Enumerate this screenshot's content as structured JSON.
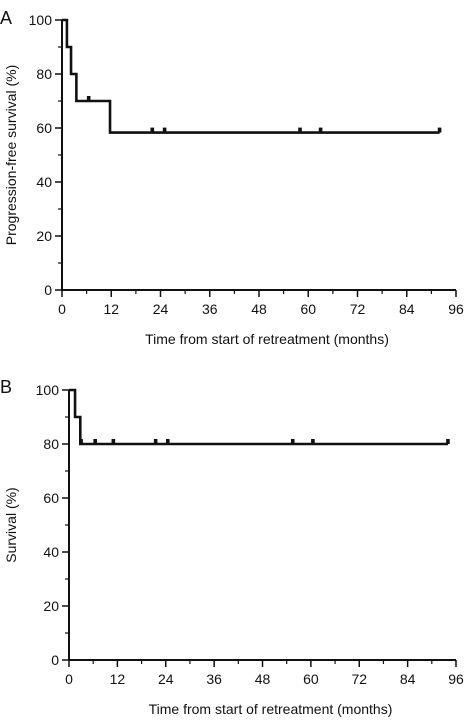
{
  "colors": {
    "line": "#111111",
    "background": "#ffffff"
  },
  "chart_data": [
    {
      "panel_label": "A",
      "type": "line",
      "step": true,
      "xlabel": "Time from start of retreatment (months)",
      "ylabel": "Progression-free survival (%)",
      "xlim": [
        0,
        96
      ],
      "ylim": [
        0,
        100
      ],
      "x_ticks": [
        0,
        12,
        24,
        36,
        48,
        60,
        72,
        84,
        96
      ],
      "x_tick_labels": [
        "0",
        "12",
        "24",
        "36",
        "48",
        "60",
        "72",
        "84",
        "96"
      ],
      "y_ticks": [
        0,
        20,
        40,
        60,
        80,
        100
      ],
      "y_tick_labels": [
        "0",
        "20",
        "40",
        "60",
        "80",
        "100"
      ],
      "series": [
        {
          "steps": [
            [
              0,
              100
            ],
            [
              1.2,
              90
            ],
            [
              2.2,
              80
            ],
            [
              3.5,
              70
            ],
            [
              11.7,
              58.3
            ]
          ],
          "x_end": 92,
          "censored": [
            [
              6.5,
              70
            ],
            [
              22,
              58.3
            ],
            [
              25,
              58.3
            ],
            [
              58,
              58.3
            ],
            [
              63,
              58.3
            ],
            [
              92,
              58.3
            ]
          ]
        }
      ]
    },
    {
      "panel_label": "B",
      "type": "line",
      "step": true,
      "xlabel": "Time from start of retreatment (months)",
      "ylabel": "Survival (%)",
      "xlim": [
        0,
        96
      ],
      "ylim": [
        0,
        100
      ],
      "x_ticks": [
        0,
        12,
        24,
        36,
        48,
        60,
        72,
        84,
        96
      ],
      "x_tick_labels": [
        "0",
        "12",
        "24",
        "36",
        "48",
        "60",
        "72",
        "84",
        "96"
      ],
      "y_ticks": [
        0,
        20,
        40,
        60,
        80,
        100
      ],
      "y_tick_labels": [
        "0",
        "20",
        "40",
        "60",
        "80",
        "100"
      ],
      "series": [
        {
          "steps": [
            [
              0,
              100
            ],
            [
              1.5,
              90
            ],
            [
              2.8,
              80
            ]
          ],
          "x_end": 94,
          "censored": [
            [
              3,
              80
            ],
            [
              6.5,
              80
            ],
            [
              11,
              80
            ],
            [
              21.5,
              80
            ],
            [
              24.5,
              80
            ],
            [
              55.5,
              80
            ],
            [
              60.5,
              80
            ],
            [
              94,
              80
            ]
          ]
        }
      ]
    }
  ]
}
